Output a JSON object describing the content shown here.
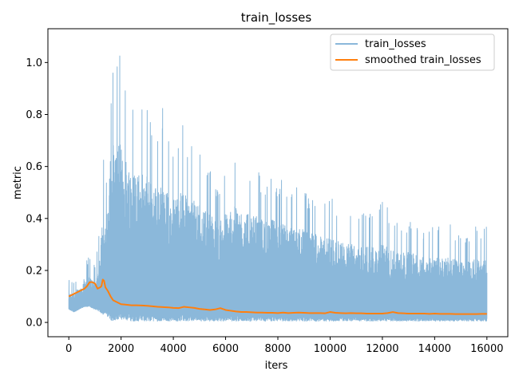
{
  "chart_data": {
    "type": "line",
    "title": "train_losses",
    "xlabel": "iters",
    "ylabel": "metric",
    "xlim": [
      -800,
      16800
    ],
    "ylim": [
      -0.055,
      1.13
    ],
    "x_ticks": [
      0,
      2000,
      4000,
      6000,
      8000,
      10000,
      12000,
      14000,
      16000
    ],
    "x_tick_labels": [
      "0",
      "2000",
      "4000",
      "6000",
      "8000",
      "10000",
      "12000",
      "14000",
      "16000"
    ],
    "y_ticks": [
      0.0,
      0.2,
      0.4,
      0.6,
      0.8,
      1.0
    ],
    "y_tick_labels": [
      "0.0",
      "0.2",
      "0.4",
      "0.6",
      "0.8",
      "1.0"
    ],
    "grid": false,
    "legend_position": "top-right",
    "series": [
      {
        "name": "train_losses",
        "color": "#8bb8da",
        "style": "noisy",
        "x": [
          0,
          200,
          400,
          600,
          800,
          1000,
          1200,
          1300,
          1400,
          1500,
          1600,
          1700,
          1800,
          1900,
          2000,
          2100,
          2200,
          2300,
          2400,
          2600,
          2800,
          3000,
          3200,
          3400,
          3600,
          3800,
          4000,
          4200,
          4400,
          4600,
          4800,
          5000,
          5200,
          5400,
          5600,
          5800,
          6000,
          6200,
          6400,
          6600,
          6800,
          7000,
          7200,
          7400,
          7600,
          7800,
          8000,
          8200,
          8400,
          8600,
          8800,
          9000,
          9200,
          9400,
          9600,
          9800,
          10000,
          10200,
          10400,
          10600,
          10800,
          11000,
          11200,
          11400,
          11600,
          11800,
          12000,
          12200,
          12400,
          12600,
          12800,
          13000,
          13200,
          13400,
          13600,
          13800,
          14000,
          14200,
          14400,
          14600,
          14800,
          15000,
          15200,
          15400,
          15600,
          15800,
          16000
        ],
        "y_max": [
          0.17,
          0.16,
          0.19,
          0.24,
          0.26,
          0.22,
          0.38,
          0.68,
          0.55,
          0.6,
          0.91,
          1.02,
          0.96,
          1.07,
          1.01,
          0.84,
          0.97,
          0.98,
          0.86,
          0.9,
          0.84,
          0.82,
          0.8,
          0.76,
          0.84,
          0.72,
          0.7,
          0.78,
          0.79,
          0.68,
          0.76,
          0.72,
          0.62,
          0.59,
          0.54,
          0.51,
          0.58,
          0.64,
          0.7,
          0.68,
          0.58,
          0.57,
          0.6,
          0.55,
          0.54,
          0.6,
          0.53,
          0.57,
          0.52,
          0.5,
          0.54,
          0.51,
          0.48,
          0.5,
          0.46,
          0.49,
          0.5,
          0.46,
          0.43,
          0.47,
          0.44,
          0.42,
          0.45,
          0.42,
          0.43,
          0.4,
          0.5,
          0.45,
          0.4,
          0.42,
          0.38,
          0.39,
          0.4,
          0.37,
          0.36,
          0.38,
          0.36,
          0.37,
          0.35,
          0.4,
          0.34,
          0.36,
          0.35,
          0.34,
          0.39,
          0.36,
          0.37
        ],
        "y_typical_high": [
          0.11,
          0.12,
          0.13,
          0.17,
          0.18,
          0.15,
          0.26,
          0.45,
          0.38,
          0.45,
          0.65,
          0.72,
          0.66,
          0.7,
          0.68,
          0.62,
          0.64,
          0.62,
          0.58,
          0.6,
          0.58,
          0.56,
          0.54,
          0.52,
          0.53,
          0.5,
          0.48,
          0.5,
          0.5,
          0.47,
          0.47,
          0.46,
          0.44,
          0.42,
          0.4,
          0.39,
          0.42,
          0.44,
          0.45,
          0.44,
          0.42,
          0.41,
          0.41,
          0.4,
          0.39,
          0.4,
          0.38,
          0.38,
          0.37,
          0.36,
          0.37,
          0.36,
          0.34,
          0.35,
          0.33,
          0.33,
          0.33,
          0.32,
          0.31,
          0.31,
          0.3,
          0.3,
          0.3,
          0.29,
          0.29,
          0.28,
          0.3,
          0.29,
          0.28,
          0.28,
          0.27,
          0.27,
          0.27,
          0.26,
          0.26,
          0.26,
          0.25,
          0.25,
          0.25,
          0.26,
          0.24,
          0.24,
          0.24,
          0.24,
          0.25,
          0.24,
          0.24
        ],
        "y_min": [
          0.05,
          0.04,
          0.05,
          0.06,
          0.06,
          0.05,
          0.04,
          0.03,
          0.03,
          0.02,
          0.01,
          0.005,
          0.005,
          0.005,
          0.005,
          0.005,
          0.005,
          0.005,
          0.005,
          0.005,
          0.005,
          0.005,
          0.005,
          0.005,
          0.005,
          0.005,
          0.005,
          0.005,
          0.005,
          0.005,
          0.005,
          0.005,
          0.005,
          0.005,
          0.005,
          0.005,
          0.005,
          0.005,
          0.005,
          0.005,
          0.005,
          0.005,
          0.005,
          0.005,
          0.005,
          0.005,
          0.005,
          0.005,
          0.005,
          0.005,
          0.005,
          0.005,
          0.005,
          0.005,
          0.005,
          0.005,
          0.005,
          0.005,
          0.005,
          0.005,
          0.005,
          0.005,
          0.005,
          0.005,
          0.005,
          0.005,
          0.005,
          0.005,
          0.005,
          0.005,
          0.005,
          0.005,
          0.005,
          0.005,
          0.005,
          0.005,
          0.005,
          0.005,
          0.005,
          0.005,
          0.005,
          0.005,
          0.005,
          0.005,
          0.005,
          0.005,
          0.005
        ]
      },
      {
        "name": "smoothed train_losses",
        "color": "#ff7f0e",
        "style": "line",
        "x": [
          0,
          200,
          400,
          600,
          700,
          800,
          900,
          1000,
          1100,
          1200,
          1250,
          1300,
          1350,
          1400,
          1500,
          1600,
          1700,
          1800,
          1900,
          2000,
          2200,
          2400,
          2600,
          2800,
          3000,
          3200,
          3400,
          3600,
          3800,
          4000,
          4200,
          4400,
          4600,
          4800,
          5000,
          5200,
          5400,
          5600,
          5800,
          6000,
          6200,
          6400,
          6600,
          6800,
          7000,
          7200,
          7400,
          7600,
          7800,
          8000,
          8200,
          8400,
          8600,
          8800,
          9000,
          9200,
          9400,
          9600,
          9800,
          10000,
          10200,
          10400,
          10600,
          10800,
          11000,
          11200,
          11400,
          11600,
          11800,
          12000,
          12200,
          12400,
          12600,
          12800,
          13000,
          13200,
          13400,
          13600,
          13800,
          14000,
          14200,
          14400,
          14600,
          14800,
          15000,
          15200,
          15400,
          15600,
          15800,
          16000
        ],
        "y": [
          0.1,
          0.11,
          0.12,
          0.13,
          0.14,
          0.155,
          0.155,
          0.15,
          0.13,
          0.135,
          0.14,
          0.165,
          0.16,
          0.135,
          0.12,
          0.1,
          0.085,
          0.08,
          0.075,
          0.07,
          0.068,
          0.066,
          0.066,
          0.065,
          0.064,
          0.062,
          0.06,
          0.059,
          0.058,
          0.056,
          0.055,
          0.06,
          0.058,
          0.056,
          0.052,
          0.05,
          0.048,
          0.05,
          0.055,
          0.048,
          0.045,
          0.042,
          0.04,
          0.04,
          0.039,
          0.038,
          0.038,
          0.037,
          0.037,
          0.036,
          0.038,
          0.036,
          0.037,
          0.038,
          0.037,
          0.036,
          0.036,
          0.036,
          0.035,
          0.04,
          0.037,
          0.036,
          0.035,
          0.036,
          0.035,
          0.035,
          0.034,
          0.034,
          0.034,
          0.034,
          0.036,
          0.04,
          0.036,
          0.035,
          0.034,
          0.034,
          0.034,
          0.034,
          0.033,
          0.034,
          0.033,
          0.033,
          0.033,
          0.032,
          0.032,
          0.032,
          0.032,
          0.032,
          0.033,
          0.033
        ]
      }
    ]
  }
}
